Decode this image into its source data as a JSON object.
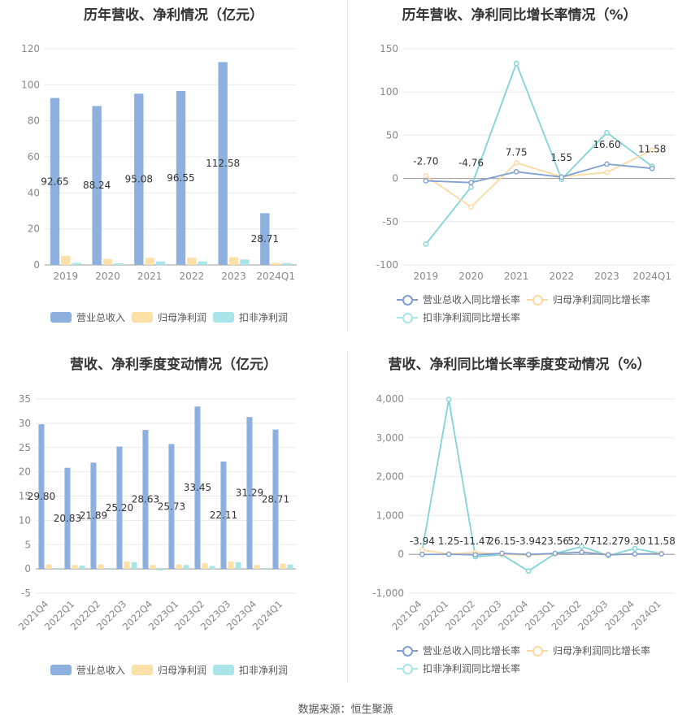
{
  "source_text": "数据来源：恒生聚源",
  "legend_bar": [
    "营业总收入",
    "归母净利润",
    "扣非净利润"
  ],
  "legend_line": [
    "营业总收入同比增长率",
    "归母净利润同比增长率",
    "扣非净利润同比增长率"
  ],
  "colors": {
    "revenue": "#8eb0de",
    "netprofit": "#fde0a8",
    "deducted": "#a8e4e8",
    "rev_line": "#7f9fd0",
    "np_line": "#fdd9a0",
    "ded_line": "#7fd4d8",
    "grid": "#e8e8ee",
    "axis_text": "#888888"
  },
  "chart_data": [
    {
      "id": "annual-amount",
      "type": "bar",
      "title": "历年营收、净利情况（亿元）",
      "categories": [
        "2019",
        "2020",
        "2021",
        "2022",
        "2023",
        "2024Q1"
      ],
      "series": [
        {
          "name": "营业总收入",
          "values": [
            92.65,
            88.24,
            95.08,
            96.55,
            112.58,
            28.71
          ]
        },
        {
          "name": "归母净利润",
          "values": [
            5.0,
            3.3,
            3.9,
            4.0,
            4.3,
            1.1
          ]
        },
        {
          "name": "扣非净利润",
          "values": [
            1.1,
            0.9,
            1.9,
            1.9,
            3.0,
            1.0
          ]
        }
      ],
      "data_labels": [
        "92.65",
        "88.24",
        "95.08",
        "96.55",
        "112.58",
        "28.71"
      ],
      "yticks": [
        0,
        20,
        40,
        60,
        80,
        100,
        120
      ],
      "ylim": [
        0,
        120
      ],
      "legend_position": "bottom"
    },
    {
      "id": "annual-growth",
      "type": "line",
      "title": "历年营收、净利同比增长率情况（%）",
      "categories": [
        "2019",
        "2020",
        "2021",
        "2022",
        "2023",
        "2024Q1"
      ],
      "series": [
        {
          "name": "营业总收入同比增长率",
          "values": [
            -2.7,
            -4.76,
            7.75,
            1.55,
            16.6,
            11.58
          ]
        },
        {
          "name": "归母净利润同比增长率",
          "values": [
            3.0,
            -33.0,
            18.0,
            2.0,
            7.0,
            33.0
          ]
        },
        {
          "name": "扣非净利润同比增长率",
          "values": [
            -76.0,
            -10.0,
            133.0,
            -1.0,
            53.0,
            14.0
          ]
        }
      ],
      "data_labels": [
        "-2.70",
        "-4.76",
        "7.75",
        "1.55",
        "16.60",
        "11.58"
      ],
      "yticks": [
        -100,
        -50,
        0,
        50,
        100,
        150
      ],
      "ylim": [
        -100,
        150
      ],
      "legend_position": "bottom"
    },
    {
      "id": "quarterly-amount",
      "type": "bar",
      "title": "营收、净利季度变动情况（亿元）",
      "categories": [
        "2021Q4",
        "2022Q1",
        "2022Q2",
        "2022Q3",
        "2022Q4",
        "2023Q1",
        "2023Q2",
        "2023Q3",
        "2023Q4",
        "2024Q1"
      ],
      "series": [
        {
          "name": "营业总收入",
          "values": [
            29.8,
            20.83,
            21.89,
            25.2,
            28.63,
            25.73,
            33.45,
            22.11,
            31.29,
            28.71
          ]
        },
        {
          "name": "归母净利润",
          "values": [
            0.9,
            0.8,
            0.9,
            1.5,
            0.8,
            0.9,
            1.2,
            1.5,
            0.8,
            1.1
          ]
        },
        {
          "name": "扣非净利润",
          "values": [
            0.2,
            0.7,
            0.2,
            1.4,
            -0.3,
            0.8,
            0.6,
            1.4,
            0.2,
            0.9
          ]
        }
      ],
      "data_labels": [
        "29.80",
        "20.83",
        "21.89",
        "25.20",
        "28.63",
        "25.73",
        "33.45",
        "22.11",
        "31.29",
        "28.71"
      ],
      "yticks": [
        -5,
        0,
        5,
        10,
        15,
        20,
        25,
        30,
        35
      ],
      "ylim": [
        -5,
        35
      ],
      "legend_position": "bottom"
    },
    {
      "id": "quarterly-growth",
      "type": "line",
      "title": "营收、净利同比增长率季度变动情况（%）",
      "categories": [
        "2021Q4",
        "2022Q1",
        "2022Q2",
        "2022Q3",
        "2022Q4",
        "2023Q1",
        "2023Q2",
        "2023Q3",
        "2023Q4",
        "2024Q1"
      ],
      "series": [
        {
          "name": "营业总收入同比增长率",
          "values": [
            -3.94,
            1.25,
            -11.47,
            26.15,
            -3.94,
            23.56,
            52.77,
            -12.27,
            9.3,
            11.58
          ]
        },
        {
          "name": "归母净利润同比增长率",
          "values": [
            110,
            10,
            50,
            0,
            -20,
            10,
            60,
            0,
            10,
            30
          ]
        },
        {
          "name": "扣非净利润同比增长率",
          "values": [
            100,
            3990,
            -60,
            -10,
            -430,
            20,
            200,
            -30,
            150,
            20
          ]
        }
      ],
      "data_labels": [
        "-3.94",
        "1.25",
        "-11.47",
        "26.15",
        "-3.94",
        "23.56",
        "52.77",
        "-12.27",
        "9.30",
        "11.58"
      ],
      "yticks": [
        -1000,
        0,
        1000,
        2000,
        3000,
        4000
      ],
      "ytick_labels": [
        "-1,000",
        "0",
        "1,000",
        "2,000",
        "3,000",
        "4,000"
      ],
      "ylim": [
        -1000,
        4000
      ],
      "legend_position": "bottom"
    }
  ]
}
